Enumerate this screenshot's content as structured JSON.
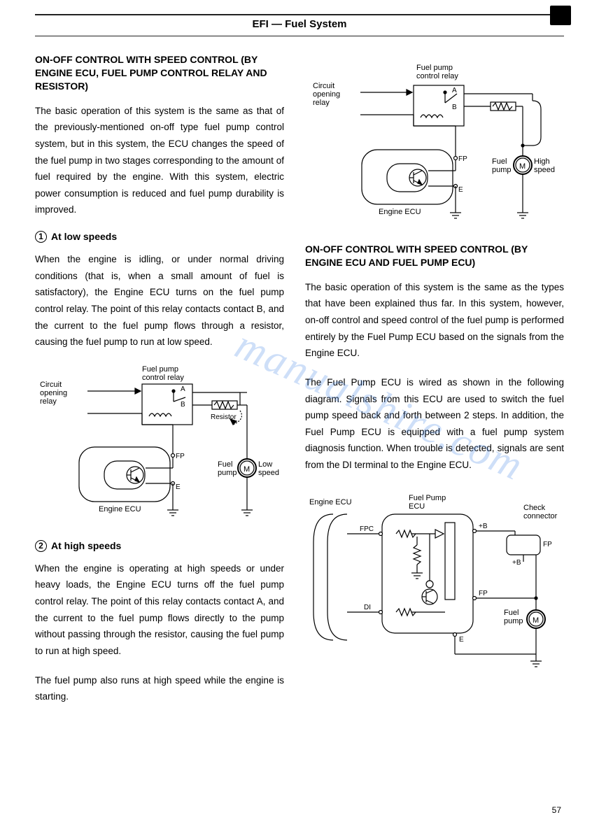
{
  "header": {
    "breadcrumb": "EFI — Fuel System"
  },
  "page_number": "57",
  "watermark": "manualshire.com",
  "left": {
    "title1": "ON-OFF CONTROL WITH SPEED CONTROL (BY ENGINE ECU, FUEL PUMP CONTROL RELAY AND RESISTOR)",
    "para1": "The basic operation of this system is the same as that of the previously-mentioned on-off type fuel pump control system, but in this system, the ECU changes the speed of the fuel pump in two stages corresponding to the amount of fuel required by the engine. With this system, electric power consumption is reduced and fuel pump durability is improved.",
    "sub1_num": "1",
    "sub1": "At low speeds",
    "para2": "When the engine is idling, or under normal driving conditions (that is, when a small amount of fuel is satisfactory), the Engine ECU turns on the fuel pump control relay. The point of this relay contacts contact B, and the current to the fuel pump flows through a resistor, causing the fuel pump to run at low speed.",
    "sub2_num": "2",
    "sub2": "At high speeds",
    "para3": "When the engine is operating at high speeds or under heavy loads, the Engine ECU turns off the fuel pump control relay. The point of this relay contacts contact A, and the current to the fuel pump flows directly to the pump without passing through the resistor, causing the fuel pump to run at high speed.",
    "para4": "The fuel pump also runs at high speed while the engine is starting."
  },
  "right": {
    "title2": "ON-OFF CONTROL WITH SPEED CONTROL (BY ENGINE ECU AND FUEL PUMP ECU)",
    "para5": "The basic operation of this system is the same as the types that have been explained thus far. In this system, however, on-off control and speed control of the fuel pump is performed entirely by the Fuel Pump ECU based on the signals from the Engine ECU.",
    "para6": "The Fuel Pump ECU is wired as shown in the following diagram. Signals from this ECU are used to switch the fuel pump speed back and forth between 2 steps. In addition, the Fuel Pump ECU is equipped with a fuel pump system diagnosis function. When trouble is detected, signals are sent from the DI terminal to the Engine ECU."
  },
  "diagrams": {
    "d1": {
      "labels": {
        "circuit_relay": "Circuit\nopening\nrelay",
        "fp_relay": "Fuel pump\ncontrol relay",
        "a": "A",
        "b": "B",
        "fp_pin": "FP",
        "e_pin": "E",
        "fuel_pump": "Fuel\npump",
        "speed": "High\nspeed",
        "m": "M",
        "ecu": "Engine ECU"
      },
      "colors": {
        "stroke": "#000000",
        "fill": "#ffffff"
      }
    },
    "d2": {
      "labels": {
        "circuit_relay": "Circuit\nopening\nrelay",
        "fp_relay": "Fuel pump\ncontrol relay",
        "a": "A",
        "b": "B",
        "resistor": "Resistor",
        "fp_pin": "FP",
        "e_pin": "E",
        "fuel_pump": "Fuel\npump",
        "speed": "Low\nspeed",
        "m": "M",
        "ecu": "Engine ECU"
      },
      "colors": {
        "stroke": "#000000",
        "fill": "#ffffff"
      }
    },
    "d3": {
      "labels": {
        "engine_ecu": "Engine ECU",
        "fp_ecu": "Fuel Pump\nECU",
        "check": "Check\nconnector",
        "fpc": "FPC",
        "di": "DI",
        "plusb": "+B",
        "fp": "FP",
        "e": "E",
        "fuel_pump": "Fuel\npump",
        "m": "M"
      },
      "colors": {
        "stroke": "#000000",
        "fill": "#ffffff"
      }
    }
  }
}
